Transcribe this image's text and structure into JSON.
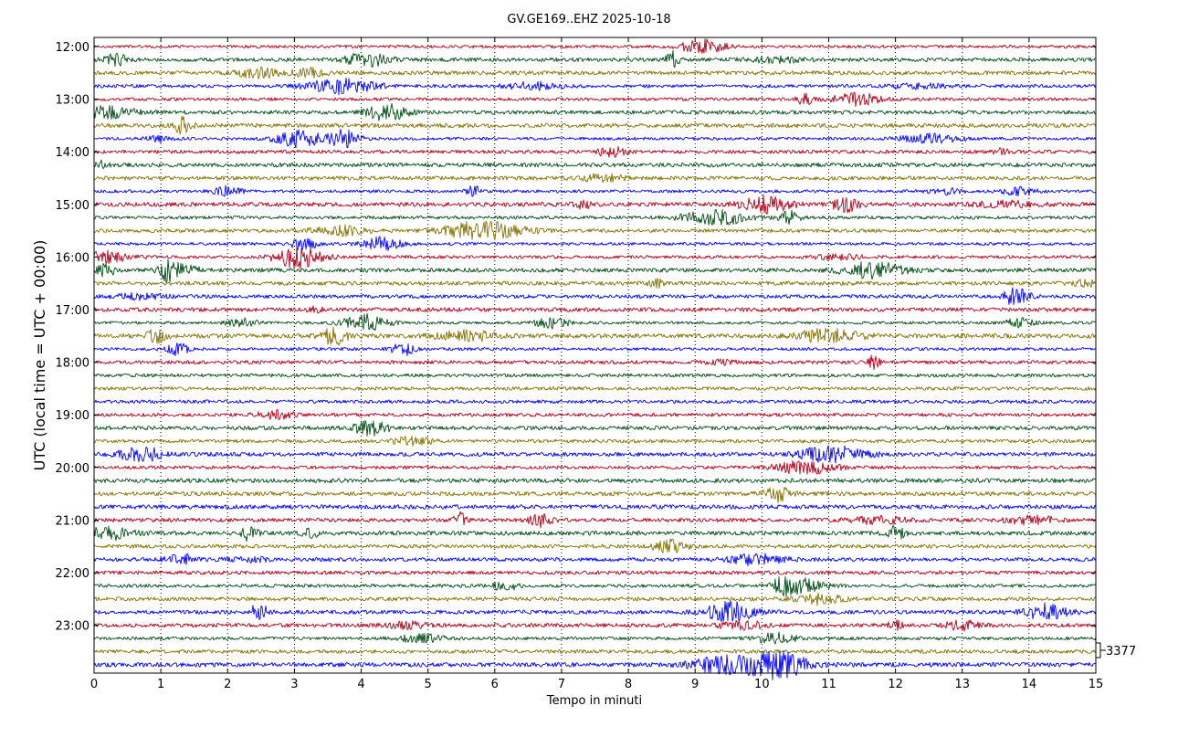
{
  "chart_data": {
    "type": "line",
    "title": "GV.GE169..EHZ 2025-10-18",
    "xlabel": "Tempo in minuti",
    "ylabel": "UTC (local time = UTC + 00:00)",
    "xlim": [
      0,
      15
    ],
    "x_ticks": [
      "0",
      "1",
      "2",
      "3",
      "4",
      "5",
      "6",
      "7",
      "8",
      "9",
      "10",
      "11",
      "12",
      "13",
      "14",
      "15"
    ],
    "y_ticks": [
      "12:00",
      "13:00",
      "14:00",
      "15:00",
      "16:00",
      "17:00",
      "18:00",
      "19:00",
      "20:00",
      "21:00",
      "22:00",
      "23:00"
    ],
    "trace_minutes": 15,
    "trace_start": "12:00",
    "trace_end": "23:45",
    "trace_count": 48,
    "grid": "vertical dotted",
    "series_colors": [
      "#b0001a",
      "#004d14",
      "#857100",
      "#0000ff"
    ],
    "scale_label": "3377"
  }
}
